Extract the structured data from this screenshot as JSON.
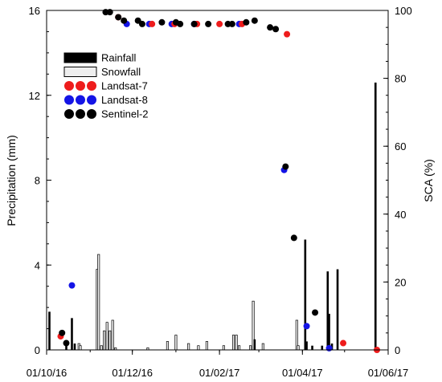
{
  "chart_data": {
    "type": "bar+scatter",
    "xlabel": "",
    "ylabel_left": "Precipitation (mm)",
    "ylabel_right": "SCA (%)",
    "x_ticks": [
      "01/10/16",
      "01/12/16",
      "01/02/17",
      "01/04/17",
      "01/06/17"
    ],
    "x_tick_values": [
      "2016-10-01",
      "2016-12-01",
      "2017-02-01",
      "2017-04-01",
      "2017-06-01"
    ],
    "xlim": [
      "2016-10-01",
      "2017-06-01"
    ],
    "ylim_left": [
      0,
      16
    ],
    "ylim_right": [
      0,
      100
    ],
    "y_ticks_left": [
      "0",
      "4",
      "8",
      "12",
      "16"
    ],
    "y_ticks_right": [
      "0",
      "20",
      "40",
      "60",
      "80",
      "100"
    ],
    "legend": {
      "position": "upper-left",
      "entries": [
        {
          "label": "Rainfall",
          "kind": "bar",
          "fill": "#000000"
        },
        {
          "label": "Snowfall",
          "kind": "bar",
          "fill": "#eeeeee"
        },
        {
          "label": "Landsat-7",
          "kind": "points",
          "color": "#ee1c1c"
        },
        {
          "label": "Landsat-8",
          "kind": "points",
          "color": "#1414e6"
        },
        {
          "label": "Sentinel-2",
          "kind": "points",
          "color": "#000000"
        }
      ]
    },
    "rainfall": [
      {
        "date": "2016-10-03",
        "value": 1.8
      },
      {
        "date": "2016-10-15",
        "value": 0.4
      },
      {
        "date": "2016-10-19",
        "value": 1.5
      },
      {
        "date": "2016-10-21",
        "value": 0.3
      },
      {
        "date": "2017-02-26",
        "value": 0.5
      },
      {
        "date": "2017-04-03",
        "value": 5.2
      },
      {
        "date": "2017-04-04",
        "value": 0.4
      },
      {
        "date": "2017-04-08",
        "value": 0.2
      },
      {
        "date": "2017-04-15",
        "value": 0.2
      },
      {
        "date": "2017-04-19",
        "value": 3.7
      },
      {
        "date": "2017-04-20",
        "value": 1.7
      },
      {
        "date": "2017-04-22",
        "value": 0.3
      },
      {
        "date": "2017-04-26",
        "value": 3.8
      },
      {
        "date": "2017-05-23",
        "value": 12.6
      }
    ],
    "snowfall": [
      {
        "date": "2016-10-24",
        "value": 0.3
      },
      {
        "date": "2016-10-25",
        "value": 0.2
      },
      {
        "date": "2016-11-06",
        "value": 3.8
      },
      {
        "date": "2016-11-07",
        "value": 4.5
      },
      {
        "date": "2016-11-09",
        "value": 0.2
      },
      {
        "date": "2016-11-11",
        "value": 0.9
      },
      {
        "date": "2016-11-13",
        "value": 1.3
      },
      {
        "date": "2016-11-15",
        "value": 0.9
      },
      {
        "date": "2016-11-17",
        "value": 1.4
      },
      {
        "date": "2016-11-19",
        "value": 0.1
      },
      {
        "date": "2016-12-12",
        "value": 0.1
      },
      {
        "date": "2016-12-26",
        "value": 0.4
      },
      {
        "date": "2017-01-01",
        "value": 0.7
      },
      {
        "date": "2017-01-10",
        "value": 0.3
      },
      {
        "date": "2017-01-17",
        "value": 0.2
      },
      {
        "date": "2017-01-23",
        "value": 0.4
      },
      {
        "date": "2017-02-04",
        "value": 0.2
      },
      {
        "date": "2017-02-11",
        "value": 0.7
      },
      {
        "date": "2017-02-13",
        "value": 0.7
      },
      {
        "date": "2017-02-15",
        "value": 0.2
      },
      {
        "date": "2017-02-23",
        "value": 0.2
      },
      {
        "date": "2017-02-25",
        "value": 2.3
      },
      {
        "date": "2017-03-04",
        "value": 0.3
      },
      {
        "date": "2017-03-28",
        "value": 1.4
      },
      {
        "date": "2017-03-29",
        "value": 0.2
      }
    ],
    "sca_landsat7": [
      {
        "date": "2016-10-11",
        "value": 4
      },
      {
        "date": "2016-11-21",
        "value": 98
      },
      {
        "date": "2016-12-15",
        "value": 96
      },
      {
        "date": "2016-12-31",
        "value": 96
      },
      {
        "date": "2017-01-16",
        "value": 96
      },
      {
        "date": "2017-02-01",
        "value": 96
      },
      {
        "date": "2017-02-17",
        "value": 96
      },
      {
        "date": "2017-03-21",
        "value": 93
      },
      {
        "date": "2017-04-30",
        "value": 2
      },
      {
        "date": "2017-05-24",
        "value": 0
      }
    ],
    "sca_landsat8": [
      {
        "date": "2016-10-19",
        "value": 19
      },
      {
        "date": "2016-11-27",
        "value": 96
      },
      {
        "date": "2016-12-13",
        "value": 96
      },
      {
        "date": "2016-12-29",
        "value": 96
      },
      {
        "date": "2017-01-14",
        "value": 96
      },
      {
        "date": "2017-02-15",
        "value": 96
      },
      {
        "date": "2017-03-19",
        "value": 53
      },
      {
        "date": "2017-04-04",
        "value": 7
      },
      {
        "date": "2017-04-20",
        "value": 0.5
      }
    ],
    "sca_sentinel2": [
      {
        "date": "2016-10-12",
        "value": 5
      },
      {
        "date": "2016-10-15",
        "value": 2
      },
      {
        "date": "2016-11-12",
        "value": 99.5
      },
      {
        "date": "2016-11-15",
        "value": 99.5
      },
      {
        "date": "2016-11-21",
        "value": 98
      },
      {
        "date": "2016-11-25",
        "value": 97
      },
      {
        "date": "2016-12-05",
        "value": 97
      },
      {
        "date": "2016-12-08",
        "value": 96
      },
      {
        "date": "2016-12-22",
        "value": 96.5
      },
      {
        "date": "2017-01-01",
        "value": 96.5
      },
      {
        "date": "2017-01-04",
        "value": 96
      },
      {
        "date": "2017-01-14",
        "value": 96
      },
      {
        "date": "2017-01-24",
        "value": 96
      },
      {
        "date": "2017-02-07",
        "value": 96
      },
      {
        "date": "2017-02-10",
        "value": 96
      },
      {
        "date": "2017-02-20",
        "value": 96.5
      },
      {
        "date": "2017-02-26",
        "value": 97
      },
      {
        "date": "2017-03-09",
        "value": 95
      },
      {
        "date": "2017-03-13",
        "value": 94.5
      },
      {
        "date": "2017-03-20",
        "value": 54
      },
      {
        "date": "2017-03-26",
        "value": 33
      },
      {
        "date": "2017-04-10",
        "value": 11
      }
    ]
  }
}
